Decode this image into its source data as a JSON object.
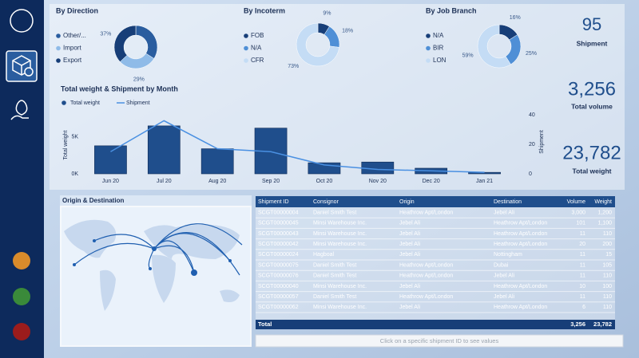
{
  "chart_data": [
    {
      "type": "pie",
      "title": "By Direction",
      "categories": [
        "Other/...",
        "Import",
        "Export"
      ],
      "values": [
        34,
        29,
        37
      ],
      "value_labels": [
        null,
        "29%",
        "37%"
      ],
      "colors": [
        "#2a5d9f",
        "#8fbbe8",
        "#173e78"
      ]
    },
    {
      "type": "pie",
      "title": "By Incoterm",
      "categories": [
        "FOB",
        "N/A",
        "CFR"
      ],
      "values": [
        9,
        18,
        73
      ],
      "value_labels": [
        "9%",
        "18%",
        "73%"
      ],
      "colors": [
        "#173e78",
        "#4f8fd6",
        "#c4dcf5"
      ]
    },
    {
      "type": "pie",
      "title": "By Job Branch",
      "categories": [
        "N/A",
        "BIR",
        "LON"
      ],
      "values": [
        16,
        25,
        59
      ],
      "value_labels": [
        "16%",
        "25%",
        "59%"
      ],
      "colors": [
        "#173e78",
        "#4f8fd6",
        "#c4dcf5"
      ]
    },
    {
      "type": "bar",
      "title": "Total weight & Shipment by Month",
      "categories": [
        "Jun 20",
        "Jul 20",
        "Aug 20",
        "Sep 20",
        "Oct 20",
        "Nov 20",
        "Dec 20",
        "Jan 21"
      ],
      "series": [
        {
          "name": "Total weight",
          "type": "bar",
          "color": "#1f4e8c",
          "values": [
            3800,
            6500,
            3400,
            6200,
            1500,
            1600,
            760,
            200
          ]
        },
        {
          "name": "Shipment",
          "type": "line",
          "axis": "y2",
          "color": "#4a90e2",
          "values": [
            15,
            36,
            17,
            15,
            6,
            3,
            2,
            1
          ]
        }
      ],
      "ylabel": "Total weight",
      "y2label": "Shipment",
      "ylim": [
        0,
        8000
      ],
      "yticks": [
        {
          "value": 0,
          "label": "0K"
        },
        {
          "value": 5000,
          "label": "5K"
        }
      ],
      "y2lim": [
        0,
        40
      ],
      "y2ticks": [
        0,
        20,
        40
      ]
    }
  ],
  "kpis": [
    {
      "value": "95",
      "label": "Shipment"
    },
    {
      "value": "3,256",
      "label": "Total volume"
    },
    {
      "value": "23,782",
      "label": "Total weight"
    }
  ],
  "map": {
    "title": "Origin & Destination"
  },
  "table": {
    "columns": [
      "Shipment ID",
      "Consignor",
      "Origin",
      "Destination",
      "Volume",
      "Weight"
    ],
    "rows": [
      [
        "SCGT00000004",
        "Daniel Smith Test",
        "Heathrow Apt/London",
        "Jebel Ali",
        "3,000",
        "1,200"
      ],
      [
        "SCGT00000045",
        "Minsi Warehouse Inc.",
        "Jebel Ali",
        "Heathrow Apt/London",
        "101",
        "1,100"
      ],
      [
        "SCGT00000043",
        "Minsi Warehouse Inc.",
        "Jebel Ali",
        "Heathrow Apt/London",
        "11",
        "110"
      ],
      [
        "SCGT00000042",
        "Minsi Warehouse Inc.",
        "Jebel Ali",
        "Heathrow Apt/London",
        "20",
        "200"
      ],
      [
        "SCGT00000024",
        "Hagboal",
        "Jebel Ali",
        "Nottingham",
        "11",
        "15"
      ],
      [
        "SCGT00000075",
        "Daniel Smith Test",
        "Heathrow Apt/London",
        "Dubai",
        "11",
        "105"
      ],
      [
        "SCGT00000076",
        "Daniel Smith Test",
        "Heathrow Apt/London",
        "Jebel Ali",
        "11",
        "110"
      ],
      [
        "SCGT00000040",
        "Minsi Warehouse Inc.",
        "Jebel Ali",
        "Heathrow Apt/London",
        "10",
        "100"
      ],
      [
        "SCGT00000057",
        "Daniel Smith Test",
        "Heathrow Apt/London",
        "Jebel Ali",
        "11",
        "110"
      ],
      [
        "SCGT00000062",
        "Minsi Warehouse Inc.",
        "Jebel Ali",
        "Heathrow Apt/London",
        "6",
        "110"
      ]
    ],
    "total": [
      "Total",
      "3,256",
      "23,782"
    ]
  },
  "footer_hint": "Click on a specific shipment ID to see values"
}
